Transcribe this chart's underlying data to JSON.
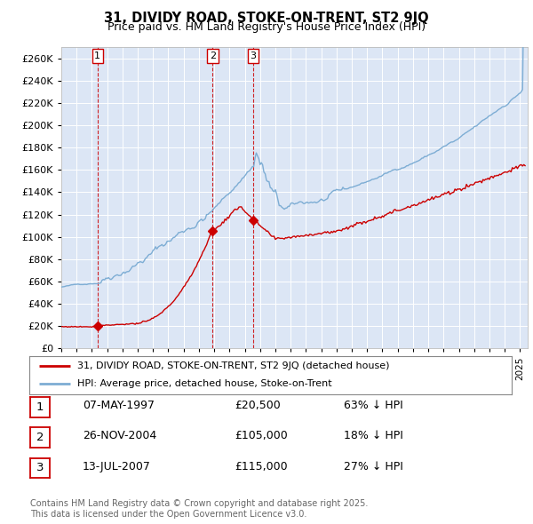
{
  "title": "31, DIVIDY ROAD, STOKE-ON-TRENT, ST2 9JQ",
  "subtitle": "Price paid vs. HM Land Registry's House Price Index (HPI)",
  "background_color": "#dce6f5",
  "plot_bg_color": "#dce6f5",
  "grid_color": "#ffffff",
  "hpi_color": "#7dadd4",
  "price_color": "#cc0000",
  "vline_color": "#cc0000",
  "ylim": [
    0,
    270000
  ],
  "yticks": [
    0,
    20000,
    40000,
    60000,
    80000,
    100000,
    120000,
    140000,
    160000,
    180000,
    200000,
    220000,
    240000,
    260000
  ],
  "sale1_date": 1997.37,
  "sale1_price": 20500,
  "sale2_date": 2004.9,
  "sale2_price": 105000,
  "sale3_date": 2007.54,
  "sale3_price": 115000,
  "legend1": "31, DIVIDY ROAD, STOKE-ON-TRENT, ST2 9JQ (detached house)",
  "legend2": "HPI: Average price, detached house, Stoke-on-Trent",
  "table_rows": [
    {
      "num": "1",
      "date": "07-MAY-1997",
      "price": "£20,500",
      "pct": "63% ↓ HPI"
    },
    {
      "num": "2",
      "date": "26-NOV-2004",
      "price": "£105,000",
      "pct": "18% ↓ HPI"
    },
    {
      "num": "3",
      "date": "13-JUL-2007",
      "price": "£115,000",
      "pct": "27% ↓ HPI"
    }
  ],
  "footer": "Contains HM Land Registry data © Crown copyright and database right 2025.\nThis data is licensed under the Open Government Licence v3.0.",
  "xmin": 1995.0,
  "xmax": 2025.5
}
